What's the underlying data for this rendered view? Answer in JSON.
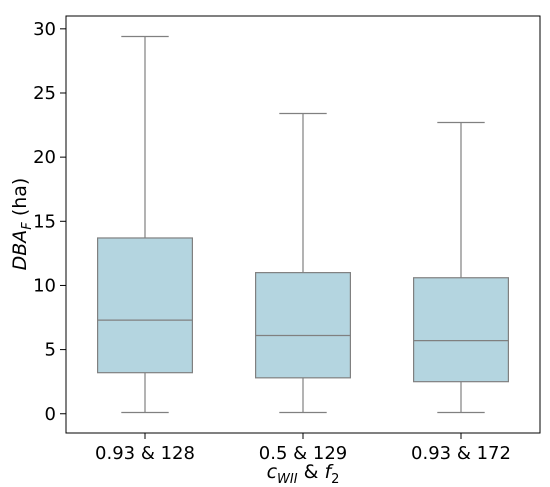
{
  "chart_data": {
    "type": "box",
    "categories": [
      "0.93 & 128",
      "0.5 & 129",
      "0.93 & 172"
    ],
    "boxes": [
      {
        "whisker_low": 0.1,
        "q1": 3.2,
        "median": 7.3,
        "q3": 13.7,
        "whisker_high": 29.4
      },
      {
        "whisker_low": 0.1,
        "q1": 2.8,
        "median": 6.1,
        "q3": 11.0,
        "whisker_high": 23.4
      },
      {
        "whisker_low": 0.1,
        "q1": 2.5,
        "median": 5.7,
        "q3": 10.6,
        "whisker_high": 22.7
      }
    ],
    "y_ticks": [
      "0",
      "5",
      "10",
      "15",
      "20",
      "25",
      "30"
    ],
    "ylim": [
      -1.5,
      31.0
    ],
    "ylabel": {
      "main": "DBA",
      "sub": "F",
      "unit": " (ha)"
    },
    "xlabel": {
      "c": "c",
      "c_sub": "WII",
      "amp": " & ",
      "f": "f",
      "f_sub": "2"
    },
    "colors": {
      "box_fill": "#b4d5e0",
      "box_edge": "#808080",
      "median": "#808080"
    },
    "grid": false,
    "legend": "none"
  }
}
